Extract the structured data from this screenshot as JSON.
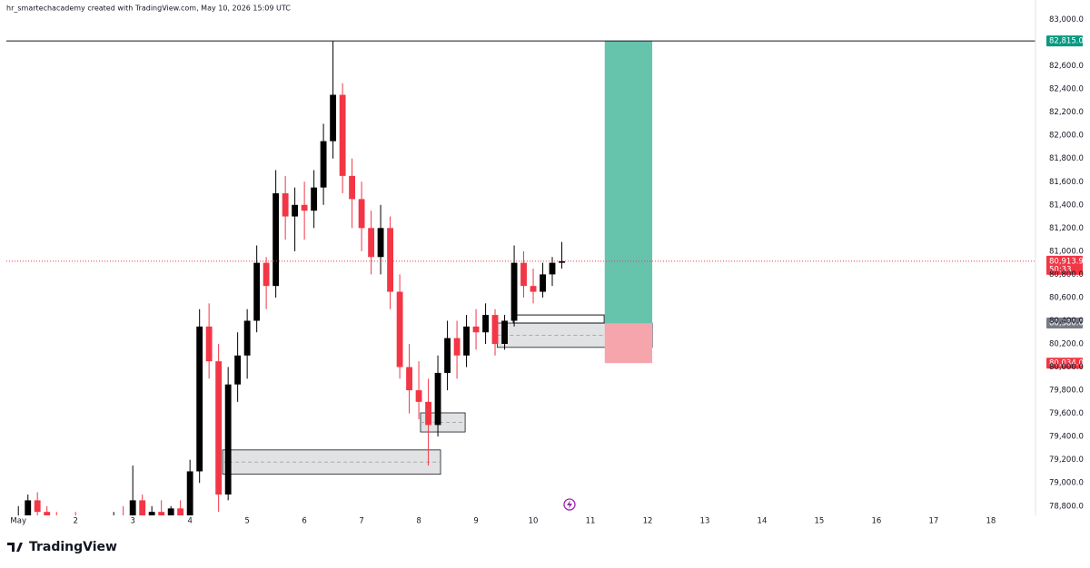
{
  "attribution": "hr_smartechacademy created with TradingView.com, May 10, 2026 15:09 UTC",
  "logo": "TradingView",
  "chart_data": {
    "type": "candlestick",
    "up_color": "#000000",
    "down_color": "#f23645",
    "xlim": [
      0.79,
      18.78
    ],
    "xticks": [
      {
        "value": 1,
        "label": "May"
      },
      2,
      3,
      4,
      5,
      6,
      7,
      8,
      9,
      10,
      11,
      12,
      13,
      14,
      15,
      16,
      17,
      18
    ],
    "ylim": [
      78720,
      83090
    ],
    "yticks": [
      {
        "value": 78800,
        "label": "78,800.0"
      },
      {
        "value": 79000,
        "label": "79,000.0"
      },
      {
        "value": 79200,
        "label": "79,200.0"
      },
      {
        "value": 79400,
        "label": "79,400.0"
      },
      {
        "value": 79600,
        "label": "79,600.0"
      },
      {
        "value": 79800,
        "label": "79,800.0"
      },
      {
        "value": 80000,
        "label": "80,000.0"
      },
      {
        "value": 80200,
        "label": "80,200.0"
      },
      {
        "value": 80400,
        "label": "80,400.0"
      },
      {
        "value": 80600,
        "label": "80,600.0"
      },
      {
        "value": 80800,
        "label": "80,800.0"
      },
      {
        "value": 81000,
        "label": "81,000.0"
      },
      {
        "value": 81200,
        "label": "81,200.0"
      },
      {
        "value": 81400,
        "label": "81,400.0"
      },
      {
        "value": 81600,
        "label": "81,600.0"
      },
      {
        "value": 81800,
        "label": "81,800.0"
      },
      {
        "value": 82000,
        "label": "82,000.0"
      },
      {
        "value": 82200,
        "label": "82,200.0"
      },
      {
        "value": 82400,
        "label": "82,400.0"
      },
      {
        "value": 82600,
        "label": "82,600.0"
      },
      {
        "value": 83000,
        "label": "83,000.0"
      }
    ],
    "x": [
      1.0,
      1.167,
      1.333,
      1.5,
      1.667,
      1.833,
      2.0,
      2.167,
      2.333,
      2.5,
      2.667,
      2.833,
      3.0,
      3.167,
      3.333,
      3.5,
      3.667,
      3.833,
      4.0,
      4.167,
      4.333,
      4.5,
      4.667,
      4.833,
      5.0,
      5.167,
      5.333,
      5.5,
      5.667,
      5.833,
      6.0,
      6.167,
      6.333,
      6.5,
      6.667,
      6.833,
      7.0,
      7.167,
      7.333,
      7.5,
      7.667,
      7.833,
      8.0,
      8.167,
      8.333,
      8.5,
      8.667,
      8.833,
      9.0,
      9.167,
      9.333,
      9.5,
      9.667,
      9.833,
      10.0,
      10.167,
      10.333,
      10.5
    ],
    "open": [
      78650,
      78700,
      78850,
      78750,
      78650,
      78600,
      78650,
      78600,
      78550,
      78600,
      78650,
      78700,
      78650,
      78850,
      78700,
      78750,
      78700,
      78780,
      78700,
      79100,
      80350,
      80050,
      78900,
      79850,
      80100,
      80400,
      80900,
      80700,
      81500,
      81300,
      81400,
      81350,
      81550,
      81950,
      82350,
      81650,
      81450,
      81200,
      80950,
      81200,
      80650,
      80000,
      79800,
      79700,
      79500,
      79950,
      80250,
      80100,
      80350,
      80300,
      80450,
      80200,
      80400,
      80900,
      80700,
      80650,
      80800,
      80900
    ],
    "high": [
      78800,
      78900,
      78920,
      78800,
      78750,
      78700,
      78750,
      78700,
      78650,
      78700,
      78750,
      78800,
      79150,
      78900,
      78800,
      78850,
      78800,
      78850,
      79200,
      80500,
      80550,
      80200,
      80000,
      80300,
      80500,
      81050,
      80950,
      81700,
      81650,
      81550,
      81600,
      81700,
      82100,
      82815,
      82450,
      81800,
      81600,
      81350,
      81400,
      81300,
      80800,
      80200,
      80050,
      79900,
      80100,
      80400,
      80400,
      80450,
      80500,
      80550,
      80500,
      80450,
      81050,
      81000,
      80850,
      80900,
      80950,
      81080
    ],
    "low": [
      78550,
      78650,
      78700,
      78600,
      78500,
      78500,
      78550,
      78500,
      78450,
      78500,
      78550,
      78600,
      78600,
      78650,
      78600,
      78650,
      78650,
      78650,
      78650,
      79000,
      79900,
      78750,
      78850,
      79700,
      79900,
      80300,
      80500,
      80600,
      81100,
      81000,
      81100,
      81200,
      81400,
      81800,
      81500,
      81200,
      81000,
      80800,
      80800,
      80500,
      79900,
      79600,
      79550,
      79150,
      79400,
      79800,
      79900,
      80000,
      80150,
      80200,
      80100,
      80150,
      80350,
      80600,
      80550,
      80600,
      80700,
      80850
    ],
    "close": [
      78700,
      78850,
      78750,
      78650,
      78600,
      78650,
      78600,
      78550,
      78600,
      78650,
      78700,
      78650,
      78850,
      78700,
      78750,
      78700,
      78780,
      78700,
      79100,
      80350,
      80050,
      78900,
      79850,
      80100,
      80400,
      80900,
      80700,
      81500,
      81300,
      81400,
      81350,
      81550,
      81950,
      82350,
      81650,
      81450,
      81200,
      80950,
      81200,
      80650,
      80000,
      79800,
      79700,
      79500,
      79950,
      80250,
      80100,
      80350,
      80300,
      80450,
      80200,
      80400,
      80900,
      80700,
      80650,
      80800,
      80900,
      80913.9
    ],
    "zones": [
      {
        "x": [
          4.57,
          8.38
        ],
        "y": [
          79075,
          79285
        ]
      },
      {
        "x": [
          8.03,
          8.81
        ],
        "y": [
          79440,
          79605
        ]
      },
      {
        "x": [
          9.37,
          12.08
        ],
        "y": [
          80170,
          80380
        ]
      }
    ],
    "outline_box": {
      "x": [
        9.65,
        11.24
      ],
      "y": [
        80380,
        80450
      ]
    },
    "horizontal_line": {
      "value": 82815,
      "label": "82,815.0",
      "color": "#089981"
    },
    "last_price": {
      "value": 80913.9,
      "label": "80,913.9",
      "countdown": "50:33",
      "color": "#f23645"
    },
    "position": {
      "x": [
        11.25,
        12.08
      ],
      "target": 82815,
      "entry": 80380,
      "stop": 80034,
      "entry_label": "80,380.0",
      "stop_label": "80,034.0",
      "entry_color": "#787b86",
      "stop_color": "#f23645",
      "profit_color": "#66c3ac",
      "loss_color": "#f7a5ad"
    }
  }
}
